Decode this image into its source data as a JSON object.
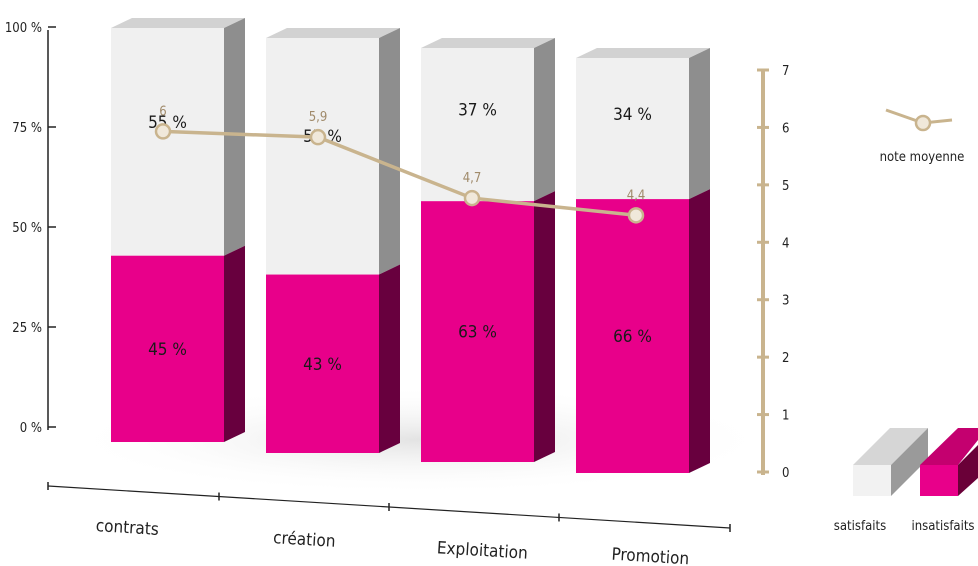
{
  "chart_data": {
    "type": "bar",
    "stacked": true,
    "categories": [
      "contrats",
      "création",
      "Exploitation",
      "Promotion"
    ],
    "series": [
      {
        "name": "insatisfaits",
        "labels": [
          "45 %",
          "43 %",
          "63 %",
          "66 %"
        ],
        "values": [
          45,
          43,
          63,
          66
        ],
        "color": "#e8008a"
      },
      {
        "name": "satisfaits",
        "labels": [
          "55 %",
          "57 %",
          "37 %",
          "34 %"
        ],
        "values": [
          55,
          57,
          37,
          34
        ],
        "color": "#f0f0f0"
      }
    ],
    "line_series": {
      "name": "note moyenne",
      "values": [
        6,
        5.9,
        4.7,
        4.4
      ],
      "labels": [
        "6",
        "5,9",
        "4,7",
        "4,4"
      ],
      "color": "#c9b48e"
    },
    "y_left_ticks": [
      "0 %",
      "25 %",
      "50 %",
      "75 %",
      "100 %"
    ],
    "y_left_range": [
      0,
      100
    ],
    "y_right_ticks": [
      "0",
      "1",
      "2",
      "3",
      "4",
      "5",
      "6",
      "7"
    ],
    "y_right_range": [
      0,
      7
    ],
    "legend": {
      "position": "right",
      "items": [
        "satisfaits",
        "insatisfaits",
        "note moyenne"
      ]
    },
    "style": "3d-perspective"
  }
}
